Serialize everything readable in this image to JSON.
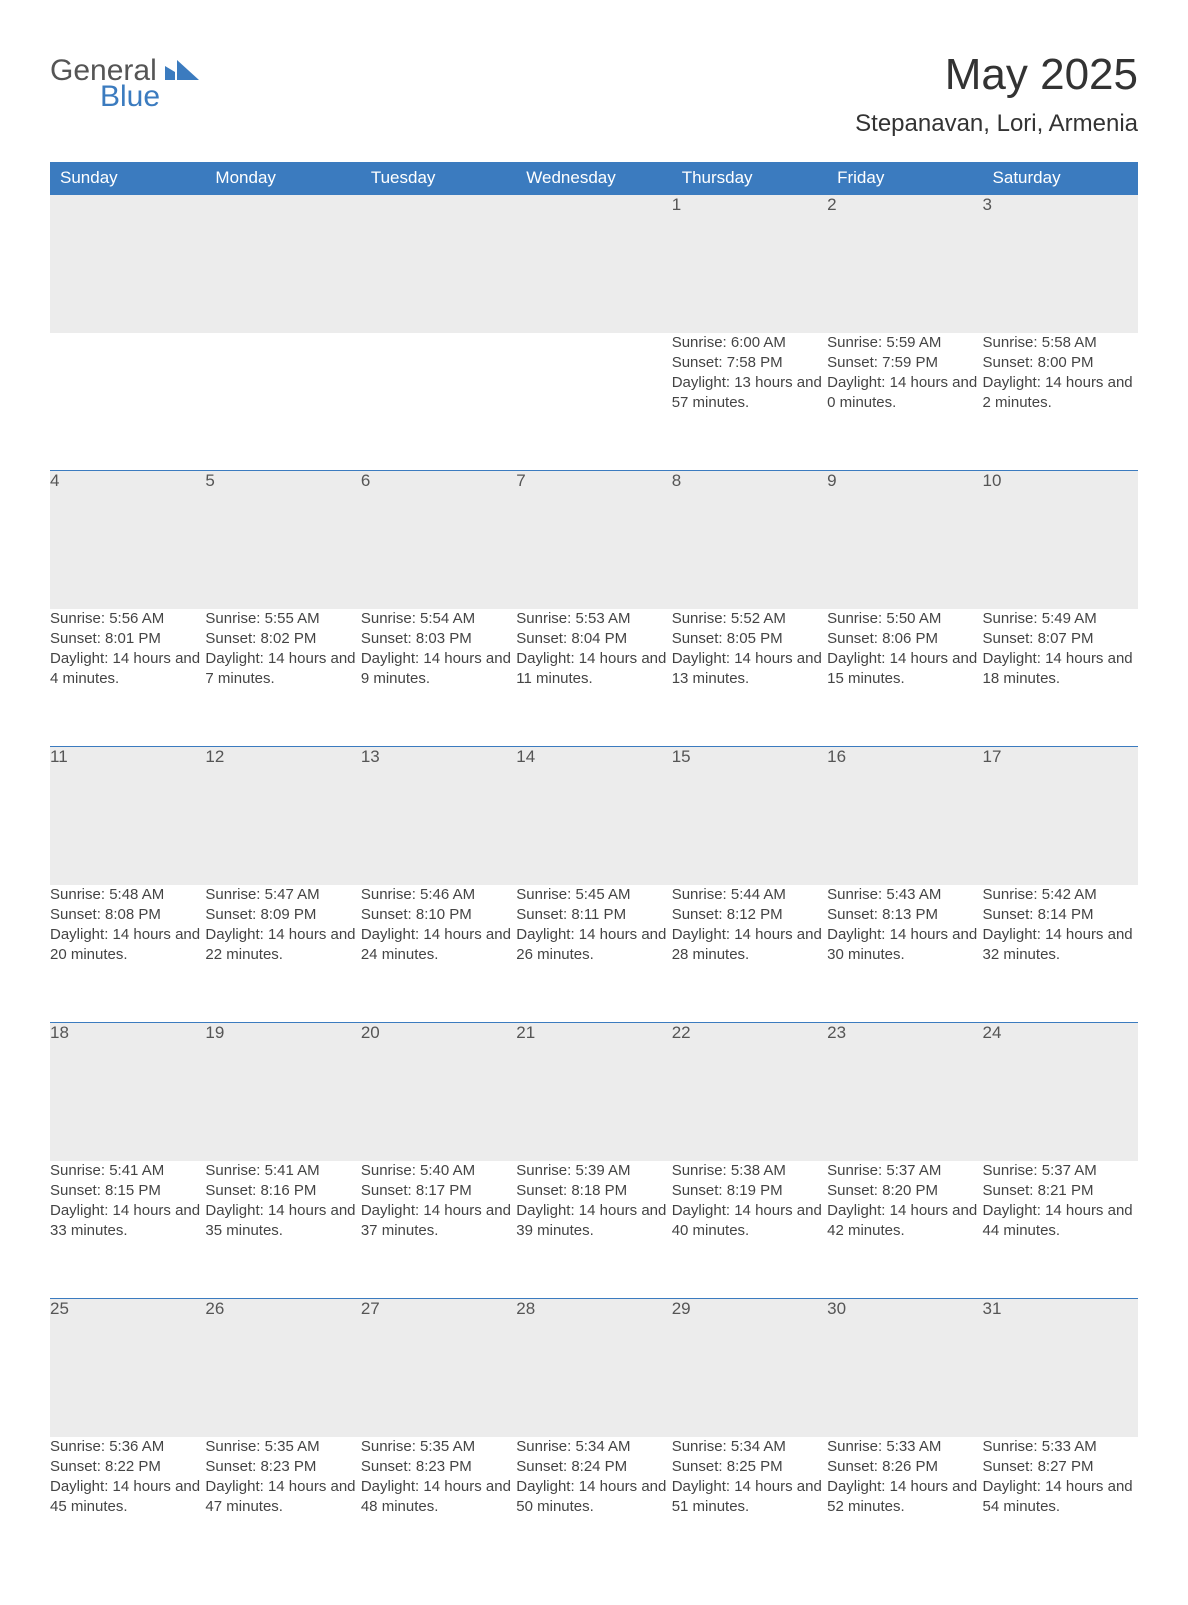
{
  "brand": {
    "general": "General",
    "blue": "Blue"
  },
  "title": "May 2025",
  "location": "Stepanavan, Lori, Armenia",
  "colors": {
    "header_bg": "#3b7bbf",
    "header_text": "#ffffff",
    "daynum_bg": "#ececec",
    "daynum_border": "#3b7bbf",
    "body_text": "#444444",
    "page_bg": "#ffffff",
    "logo_blue": "#3b7bbf",
    "logo_gray": "#555555"
  },
  "typography": {
    "title_fontsize": 44,
    "location_fontsize": 24,
    "header_fontsize": 17,
    "daynum_fontsize": 17,
    "cell_fontsize": 15
  },
  "weekdays": [
    "Sunday",
    "Monday",
    "Tuesday",
    "Wednesday",
    "Thursday",
    "Friday",
    "Saturday"
  ],
  "labels": {
    "sunrise": "Sunrise: ",
    "sunset": "Sunset: ",
    "daylight": "Daylight: "
  },
  "weeks": [
    [
      null,
      null,
      null,
      null,
      {
        "n": "1",
        "sunrise": "6:00 AM",
        "sunset": "7:58 PM",
        "daylight": "13 hours and 57 minutes."
      },
      {
        "n": "2",
        "sunrise": "5:59 AM",
        "sunset": "7:59 PM",
        "daylight": "14 hours and 0 minutes."
      },
      {
        "n": "3",
        "sunrise": "5:58 AM",
        "sunset": "8:00 PM",
        "daylight": "14 hours and 2 minutes."
      }
    ],
    [
      {
        "n": "4",
        "sunrise": "5:56 AM",
        "sunset": "8:01 PM",
        "daylight": "14 hours and 4 minutes."
      },
      {
        "n": "5",
        "sunrise": "5:55 AM",
        "sunset": "8:02 PM",
        "daylight": "14 hours and 7 minutes."
      },
      {
        "n": "6",
        "sunrise": "5:54 AM",
        "sunset": "8:03 PM",
        "daylight": "14 hours and 9 minutes."
      },
      {
        "n": "7",
        "sunrise": "5:53 AM",
        "sunset": "8:04 PM",
        "daylight": "14 hours and 11 minutes."
      },
      {
        "n": "8",
        "sunrise": "5:52 AM",
        "sunset": "8:05 PM",
        "daylight": "14 hours and 13 minutes."
      },
      {
        "n": "9",
        "sunrise": "5:50 AM",
        "sunset": "8:06 PM",
        "daylight": "14 hours and 15 minutes."
      },
      {
        "n": "10",
        "sunrise": "5:49 AM",
        "sunset": "8:07 PM",
        "daylight": "14 hours and 18 minutes."
      }
    ],
    [
      {
        "n": "11",
        "sunrise": "5:48 AM",
        "sunset": "8:08 PM",
        "daylight": "14 hours and 20 minutes."
      },
      {
        "n": "12",
        "sunrise": "5:47 AM",
        "sunset": "8:09 PM",
        "daylight": "14 hours and 22 minutes."
      },
      {
        "n": "13",
        "sunrise": "5:46 AM",
        "sunset": "8:10 PM",
        "daylight": "14 hours and 24 minutes."
      },
      {
        "n": "14",
        "sunrise": "5:45 AM",
        "sunset": "8:11 PM",
        "daylight": "14 hours and 26 minutes."
      },
      {
        "n": "15",
        "sunrise": "5:44 AM",
        "sunset": "8:12 PM",
        "daylight": "14 hours and 28 minutes."
      },
      {
        "n": "16",
        "sunrise": "5:43 AM",
        "sunset": "8:13 PM",
        "daylight": "14 hours and 30 minutes."
      },
      {
        "n": "17",
        "sunrise": "5:42 AM",
        "sunset": "8:14 PM",
        "daylight": "14 hours and 32 minutes."
      }
    ],
    [
      {
        "n": "18",
        "sunrise": "5:41 AM",
        "sunset": "8:15 PM",
        "daylight": "14 hours and 33 minutes."
      },
      {
        "n": "19",
        "sunrise": "5:41 AM",
        "sunset": "8:16 PM",
        "daylight": "14 hours and 35 minutes."
      },
      {
        "n": "20",
        "sunrise": "5:40 AM",
        "sunset": "8:17 PM",
        "daylight": "14 hours and 37 minutes."
      },
      {
        "n": "21",
        "sunrise": "5:39 AM",
        "sunset": "8:18 PM",
        "daylight": "14 hours and 39 minutes."
      },
      {
        "n": "22",
        "sunrise": "5:38 AM",
        "sunset": "8:19 PM",
        "daylight": "14 hours and 40 minutes."
      },
      {
        "n": "23",
        "sunrise": "5:37 AM",
        "sunset": "8:20 PM",
        "daylight": "14 hours and 42 minutes."
      },
      {
        "n": "24",
        "sunrise": "5:37 AM",
        "sunset": "8:21 PM",
        "daylight": "14 hours and 44 minutes."
      }
    ],
    [
      {
        "n": "25",
        "sunrise": "5:36 AM",
        "sunset": "8:22 PM",
        "daylight": "14 hours and 45 minutes."
      },
      {
        "n": "26",
        "sunrise": "5:35 AM",
        "sunset": "8:23 PM",
        "daylight": "14 hours and 47 minutes."
      },
      {
        "n": "27",
        "sunrise": "5:35 AM",
        "sunset": "8:23 PM",
        "daylight": "14 hours and 48 minutes."
      },
      {
        "n": "28",
        "sunrise": "5:34 AM",
        "sunset": "8:24 PM",
        "daylight": "14 hours and 50 minutes."
      },
      {
        "n": "29",
        "sunrise": "5:34 AM",
        "sunset": "8:25 PM",
        "daylight": "14 hours and 51 minutes."
      },
      {
        "n": "30",
        "sunrise": "5:33 AM",
        "sunset": "8:26 PM",
        "daylight": "14 hours and 52 minutes."
      },
      {
        "n": "31",
        "sunrise": "5:33 AM",
        "sunset": "8:27 PM",
        "daylight": "14 hours and 54 minutes."
      }
    ]
  ]
}
